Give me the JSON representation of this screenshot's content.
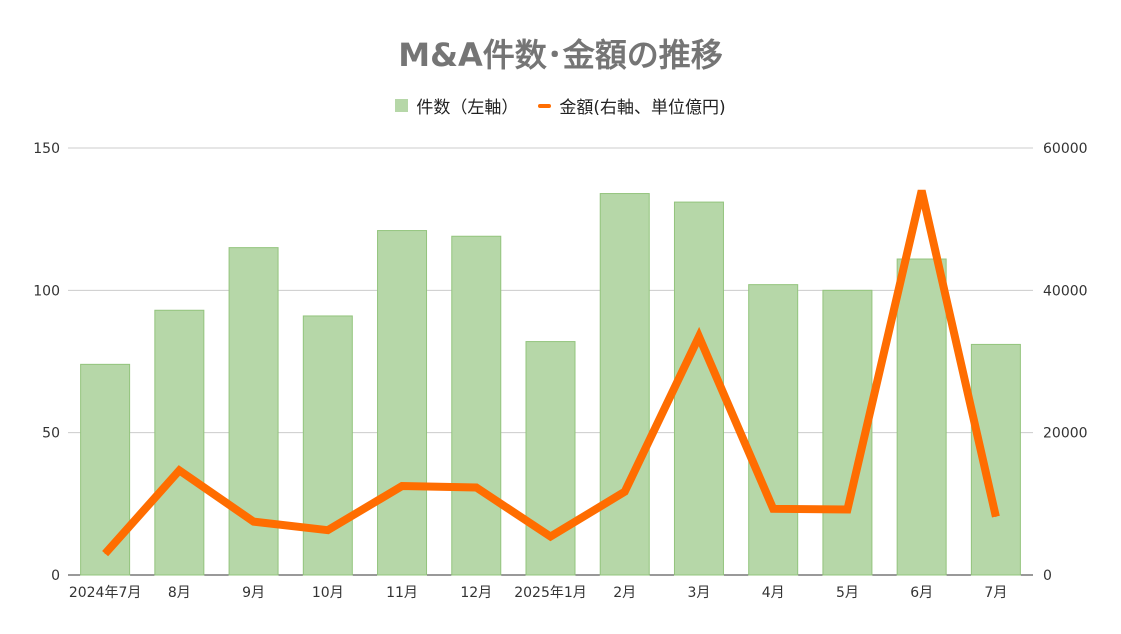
{
  "chart_data": {
    "type": "bar",
    "title": "M&A件数･金額の推移",
    "categories": [
      "2024年7月",
      "8月",
      "9月",
      "10月",
      "11月",
      "12月",
      "2025年1月",
      "2月",
      "3月",
      "4月",
      "5月",
      "6月",
      "7月"
    ],
    "series": [
      {
        "name": "件数（左軸）",
        "type": "bar",
        "axis": "left",
        "color": "#b6d7a8",
        "values": [
          74,
          93,
          115,
          91,
          121,
          119,
          82,
          134,
          131,
          102,
          100,
          111,
          81
        ]
      },
      {
        "name": "金額(右軸、単位億円)",
        "type": "line",
        "axis": "right",
        "color": "#ff6d01",
        "values": [
          3000,
          14700,
          7500,
          6300,
          12500,
          12300,
          5400,
          11700,
          33500,
          9300,
          9200,
          54000,
          8200
        ]
      }
    ],
    "y_left": {
      "min": 0,
      "max": 150,
      "ticks": [
        0,
        50,
        100,
        150
      ]
    },
    "y_right": {
      "min": 0,
      "max": 60000,
      "ticks": [
        0,
        20000,
        40000,
        60000
      ]
    },
    "grid": true,
    "legend_position": "top"
  }
}
